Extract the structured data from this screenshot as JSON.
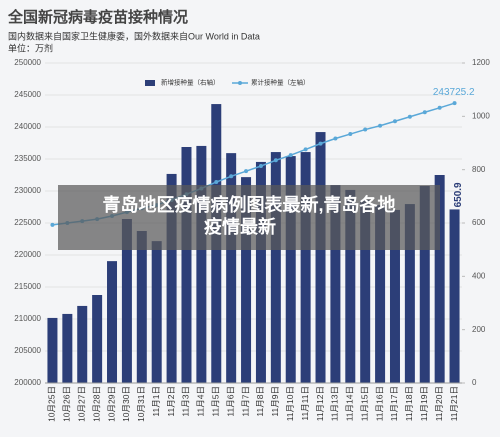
{
  "chart_data": {
    "type": "bar_line",
    "title": "全国新冠病毒疫苗接种情况",
    "subtitle": "国内数据来自国家卫生健康委，国外数据来自Our World in Data",
    "unit_label": "单位：万剂",
    "categories": [
      "10月25日",
      "10月26日",
      "10月27日",
      "10月28日",
      "10月29日",
      "10月30日",
      "10月31日",
      "11月1日",
      "11月2日",
      "11月3日",
      "11月4日",
      "11月5日",
      "11月6日",
      "11月7日",
      "11月8日",
      "11月9日",
      "11月10日",
      "11月11日",
      "11月12日",
      "11月13日",
      "11月14日",
      "11月15日",
      "11月16日",
      "11月17日",
      "11月18日",
      "11月19日",
      "11月20日",
      "11月21日"
    ],
    "series": [
      {
        "name": "新增接种量（右轴）",
        "type": "bar",
        "axis": "y2",
        "color": "#2c3e78",
        "values": [
          244,
          259,
          289,
          330,
          457,
          615,
          570,
          532,
          784,
          885,
          889,
          1046,
          862,
          772,
          829,
          866,
          851,
          866,
          941,
          742,
          724,
          686,
          667,
          649,
          671,
          739,
          780,
          650.9
        ]
      },
      {
        "name": "累计接种量（左轴）",
        "type": "line",
        "axis": "y",
        "color": "#5aa8d8",
        "values": [
          224700,
          225000,
          225300,
          225600,
          226100,
          226700,
          227300,
          227800,
          228600,
          229500,
          230400,
          231400,
          232300,
          233100,
          233900,
          234800,
          235600,
          236500,
          237400,
          238200,
          238900,
          239600,
          240200,
          240900,
          241600,
          242300,
          243000,
          243725.2
        ]
      }
    ],
    "ylim": [
      200000,
      250000
    ],
    "yticks": [
      200000,
      205000,
      210000,
      215000,
      220000,
      225000,
      230000,
      235000,
      240000,
      245000,
      250000
    ],
    "y2lim": [
      0,
      1200
    ],
    "y2ticks": [
      0,
      200,
      400,
      600,
      800,
      1000,
      1200
    ],
    "grid": true
  },
  "overlay_text": "青岛地区疫情病例图表最新,青岛各地疫情最新"
}
